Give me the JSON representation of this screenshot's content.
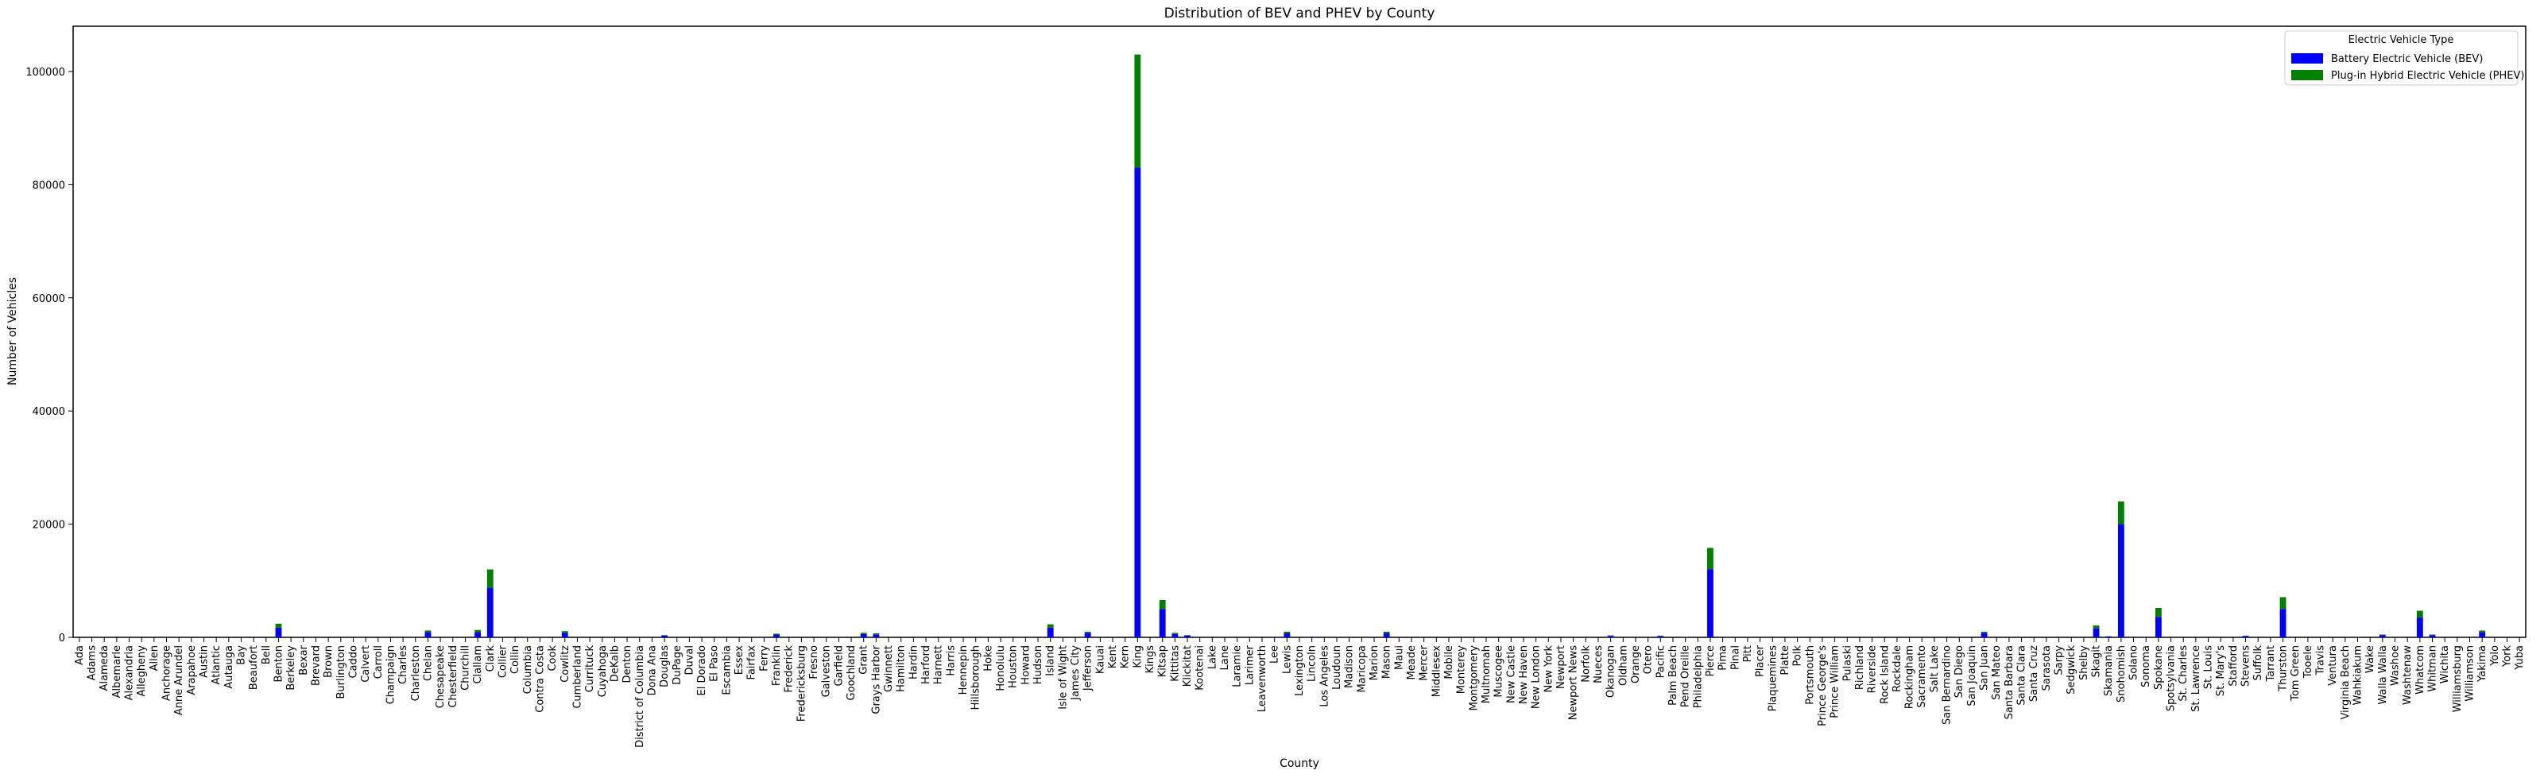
{
  "chart_data": {
    "type": "bar",
    "stacked": true,
    "title": "Distribution of BEV and PHEV by County",
    "x_label": "County",
    "y_label": "Number of Vehicles",
    "legend_title": "Electric Vehicle Type",
    "legend": "upper right",
    "categories": [
      "Ada",
      "Adams",
      "Alameda",
      "Albemarle",
      "Alexandria",
      "Allegheny",
      "Allen",
      "Anchorage",
      "Anne Arundel",
      "Arapahoe",
      "Austin",
      "Atlantic",
      "Autauga",
      "Bay",
      "Beaufort",
      "Bell",
      "Benton",
      "Berkeley",
      "Bexar",
      "Brevard",
      "Brown",
      "Burlington",
      "Caddo",
      "Calvert",
      "Carroll",
      "Champaign",
      "Charles",
      "Charleston",
      "Chelan",
      "Chesapeake",
      "Chesterfield",
      "Churchill",
      "Clallam",
      "Clark",
      "Collier",
      "Collin",
      "Columbia",
      "Contra Costa",
      "Cook",
      "Cowlitz",
      "Cumberland",
      "Currituck",
      "Cuyahoga",
      "DeKalb",
      "Denton",
      "District of Columbia",
      "Dona Ana",
      "Douglas",
      "DuPage",
      "Duval",
      "El Dorado",
      "El Paso",
      "Escambia",
      "Essex",
      "Fairfax",
      "Ferry",
      "Franklin",
      "Frederick",
      "Fredericksburg",
      "Fresno",
      "Galveston",
      "Garfield",
      "Goochland",
      "Grant",
      "Grays Harbor",
      "Gwinnett",
      "Hamilton",
      "Hardin",
      "Harford",
      "Harnett",
      "Harris",
      "Hennepin",
      "Hillsborough",
      "Hoke",
      "Honolulu",
      "Houston",
      "Howard",
      "Hudson",
      "Island",
      "Isle of Wight",
      "James City",
      "Jefferson",
      "Kauai",
      "Kent",
      "Kern",
      "King",
      "Kings",
      "Kitsap",
      "Kittitas",
      "Klickitat",
      "Kootenai",
      "Lake",
      "Lane",
      "Laramie",
      "Larimer",
      "Leavenworth",
      "Lee",
      "Lewis",
      "Lexington",
      "Lincoln",
      "Los Angeles",
      "Loudoun",
      "Madison",
      "Maricopa",
      "Marion",
      "Mason",
      "Maui",
      "Meade",
      "Mercer",
      "Middlesex",
      "Mobile",
      "Monterey",
      "Montgomery",
      "Multnomah",
      "Muscogee",
      "New Castle",
      "New Haven",
      "New London",
      "New York",
      "Newport",
      "Newport News",
      "Norfolk",
      "Nueces",
      "Okanogan",
      "Oldham",
      "Orange",
      "Otero",
      "Pacific",
      "Palm Beach",
      "Pend Oreille",
      "Philadelphia",
      "Pierce",
      "Pima",
      "Pinal",
      "Pitt",
      "Placer",
      "Plaquemines",
      "Platte",
      "Polk",
      "Portsmouth",
      "Prince George's",
      "Prince William",
      "Pulaski",
      "Richland",
      "Riverside",
      "Rock Island",
      "Rockdale",
      "Rockingham",
      "Sacramento",
      "Salt Lake",
      "San Bernardino",
      "San Diego",
      "San Joaquin",
      "San Juan",
      "San Mateo",
      "Santa Barbara",
      "Santa Clara",
      "Santa Cruz",
      "Sarasota",
      "Sarpy",
      "Sedgwick",
      "Shelby",
      "Skagit",
      "Skamania",
      "Snohomish",
      "Solano",
      "Sonoma",
      "Spokane",
      "Spotsylvania",
      "St. Charles",
      "St. Lawrence",
      "St. Louis",
      "St. Mary's",
      "Stafford",
      "Stevens",
      "Suffolk",
      "Tarrant",
      "Thurston",
      "Tom Green",
      "Tooele",
      "Travis",
      "Ventura",
      "Virginia Beach",
      "Wahkiakum",
      "Wake",
      "Walla Walla",
      "Washoe",
      "Washtenaw",
      "Whatcom",
      "Whitman",
      "Wichita",
      "Williamsburg",
      "Williamson",
      "Yakima",
      "Yolo",
      "York",
      "Yuba"
    ],
    "series": [
      {
        "name": "Battery Electric Vehicle (BEV)",
        "color": "#0000ff",
        "values": [
          5,
          20,
          10,
          2,
          3,
          2,
          1,
          3,
          4,
          3,
          2,
          1,
          1,
          2,
          3,
          2,
          1700,
          3,
          4,
          2,
          1,
          1,
          1,
          2,
          1,
          1,
          2,
          3,
          900,
          5,
          3,
          1,
          900,
          8800,
          3,
          4,
          40,
          6,
          4,
          800,
          3,
          1,
          2,
          2,
          3,
          6,
          2,
          300,
          2,
          3,
          2,
          5,
          2,
          2,
          8,
          20,
          500,
          2,
          1,
          3,
          1,
          10,
          1,
          600,
          500,
          2,
          2,
          1,
          2,
          1,
          4,
          2,
          3,
          1,
          5,
          1,
          3,
          1,
          1700,
          1,
          2,
          800,
          1,
          2,
          3,
          83000,
          4,
          5000,
          600,
          300,
          5,
          2,
          3,
          2,
          2,
          2,
          3,
          700,
          1,
          60,
          10,
          6,
          2,
          5,
          3,
          700,
          2,
          1,
          2,
          3,
          1,
          3,
          8,
          6,
          1,
          2,
          2,
          2,
          4,
          1,
          2,
          3,
          1,
          250,
          1,
          6,
          1,
          200,
          3,
          50,
          2,
          12000,
          2,
          1,
          1,
          2,
          1,
          1,
          2,
          2,
          4,
          5,
          1,
          2,
          4,
          1,
          1,
          1,
          4,
          3,
          3,
          10,
          2,
          800,
          5,
          3,
          12,
          2,
          2,
          1,
          1,
          2,
          1600,
          150,
          20000,
          3,
          3,
          3600,
          2,
          2,
          1,
          3,
          2,
          3,
          200,
          2,
          3,
          5000,
          1,
          1,
          4,
          4,
          5,
          40,
          3,
          400,
          3,
          2,
          3500,
          400,
          1,
          1,
          3,
          900,
          2,
          2,
          1
        ]
      },
      {
        "name": "Plug-in Hybrid Electric Vehicle (PHEV)",
        "color": "#008000",
        "values": [
          1,
          5,
          2,
          0,
          1,
          0,
          0,
          1,
          1,
          1,
          0,
          0,
          0,
          0,
          1,
          0,
          700,
          0,
          1,
          0,
          0,
          0,
          0,
          0,
          0,
          0,
          0,
          1,
          300,
          1,
          1,
          0,
          400,
          3200,
          1,
          1,
          15,
          1,
          1,
          300,
          1,
          0,
          0,
          0,
          1,
          2,
          0,
          100,
          0,
          1,
          0,
          1,
          0,
          0,
          2,
          10,
          150,
          0,
          0,
          1,
          0,
          5,
          0,
          200,
          200,
          0,
          0,
          0,
          0,
          0,
          1,
          0,
          1,
          0,
          1,
          0,
          1,
          0,
          600,
          0,
          1,
          200,
          0,
          0,
          1,
          20000,
          1,
          1600,
          200,
          100,
          1,
          0,
          1,
          0,
          0,
          0,
          1,
          300,
          0,
          30,
          2,
          2,
          0,
          1,
          1,
          300,
          0,
          0,
          0,
          1,
          0,
          1,
          2,
          1,
          0,
          0,
          0,
          0,
          1,
          0,
          0,
          1,
          0,
          100,
          0,
          1,
          0,
          100,
          1,
          25,
          0,
          3800,
          0,
          0,
          0,
          0,
          0,
          0,
          0,
          0,
          1,
          1,
          0,
          0,
          1,
          0,
          0,
          0,
          1,
          1,
          1,
          2,
          0,
          200,
          1,
          1,
          3,
          0,
          0,
          0,
          0,
          0,
          500,
          50,
          4000,
          1,
          1,
          1600,
          0,
          0,
          0,
          1,
          0,
          1,
          100,
          0,
          1,
          2100,
          0,
          0,
          1,
          1,
          1,
          20,
          1,
          100,
          1,
          0,
          1200,
          100,
          0,
          0,
          1,
          300,
          0,
          0,
          0
        ]
      }
    ],
    "ylim": [
      0,
      108000
    ],
    "yticks": [
      0,
      20000,
      40000,
      60000,
      80000,
      100000
    ]
  }
}
